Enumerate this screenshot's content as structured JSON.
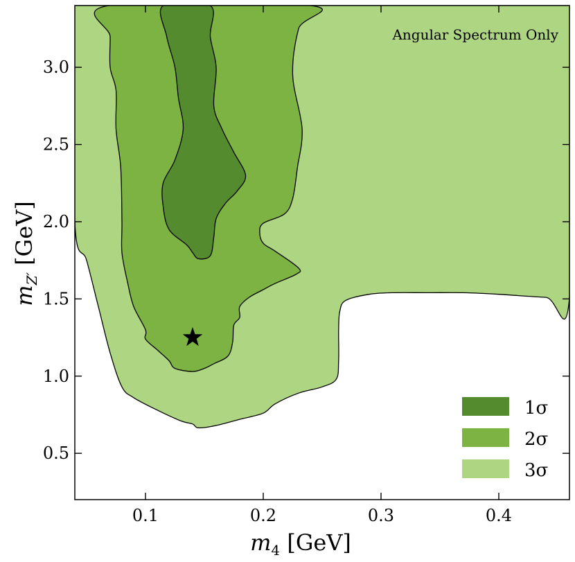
{
  "chart_data": {
    "type": "contour",
    "title": "",
    "annotation": "Angular Spectrum Only",
    "xlabel": {
      "var": "m",
      "sub": "4",
      "unit": "[GeV]"
    },
    "ylabel": {
      "var": "m",
      "sub": "Z′",
      "unit": "[GeV]"
    },
    "xlim": [
      0.04,
      0.46
    ],
    "ylim": [
      0.2,
      3.4
    ],
    "xticks": [
      0.1,
      0.2,
      0.3,
      0.4
    ],
    "xtick_labels": [
      "0.1",
      "0.2",
      "0.3",
      "0.4"
    ],
    "yticks": [
      0.5,
      1.0,
      1.5,
      2.0,
      2.5,
      3.0
    ],
    "ytick_labels": [
      "0.5",
      "1.0",
      "1.5",
      "2.0",
      "2.5",
      "3.0"
    ],
    "best_fit": {
      "x": 0.14,
      "y": 1.25,
      "marker": "star"
    },
    "legend_position": "lower-right",
    "regions": [
      {
        "label": "3σ",
        "color": "#aed581",
        "boundary": [
          [
            0.04,
            3.4
          ],
          [
            0.46,
            3.4
          ],
          [
            0.46,
            1.51
          ],
          [
            0.44,
            1.51
          ],
          [
            0.4,
            1.53
          ],
          [
            0.37,
            1.54
          ],
          [
            0.34,
            1.54
          ],
          [
            0.31,
            1.54
          ],
          [
            0.29,
            1.53
          ],
          [
            0.27,
            1.49
          ],
          [
            0.265,
            1.42
          ],
          [
            0.264,
            1.3
          ],
          [
            0.264,
            1.1
          ],
          [
            0.262,
            0.98
          ],
          [
            0.25,
            0.93
          ],
          [
            0.23,
            0.89
          ],
          [
            0.21,
            0.82
          ],
          [
            0.2,
            0.76
          ],
          [
            0.18,
            0.72
          ],
          [
            0.16,
            0.68
          ],
          [
            0.145,
            0.665
          ],
          [
            0.14,
            0.69
          ],
          [
            0.13,
            0.71
          ],
          [
            0.11,
            0.78
          ],
          [
            0.09,
            0.86
          ],
          [
            0.08,
            0.93
          ],
          [
            0.07,
            1.15
          ],
          [
            0.06,
            1.45
          ],
          [
            0.05,
            1.75
          ],
          [
            0.04,
            2.0
          ]
        ]
      },
      {
        "label": "2σ",
        "color": "#7cb342",
        "boundary": [
          [
            0.069,
            3.4
          ],
          [
            0.24,
            3.4
          ],
          [
            0.23,
            3.25
          ],
          [
            0.225,
            2.95
          ],
          [
            0.233,
            2.6
          ],
          [
            0.229,
            2.35
          ],
          [
            0.225,
            2.15
          ],
          [
            0.218,
            2.05
          ],
          [
            0.2,
            1.99
          ],
          [
            0.197,
            1.93
          ],
          [
            0.2,
            1.86
          ],
          [
            0.21,
            1.81
          ],
          [
            0.23,
            1.7
          ],
          [
            0.228,
            1.66
          ],
          [
            0.21,
            1.6
          ],
          [
            0.2,
            1.56
          ],
          [
            0.188,
            1.51
          ],
          [
            0.18,
            1.45
          ],
          [
            0.18,
            1.38
          ],
          [
            0.175,
            1.33
          ],
          [
            0.174,
            1.22
          ],
          [
            0.17,
            1.13
          ],
          [
            0.158,
            1.08
          ],
          [
            0.15,
            1.05
          ],
          [
            0.14,
            1.03
          ],
          [
            0.125,
            1.05
          ],
          [
            0.12,
            1.1
          ],
          [
            0.11,
            1.17
          ],
          [
            0.1,
            1.24
          ],
          [
            0.1,
            1.3
          ],
          [
            0.09,
            1.45
          ],
          [
            0.085,
            1.6
          ],
          [
            0.08,
            1.8
          ],
          [
            0.08,
            2.0
          ],
          [
            0.079,
            2.35
          ],
          [
            0.075,
            2.6
          ],
          [
            0.075,
            2.85
          ],
          [
            0.07,
            3.0
          ],
          [
            0.07,
            3.2
          ]
        ]
      },
      {
        "label": "1σ",
        "color": "#558b2f",
        "boundary": [
          [
            0.115,
            3.4
          ],
          [
            0.155,
            3.4
          ],
          [
            0.155,
            3.2
          ],
          [
            0.16,
            3.0
          ],
          [
            0.158,
            2.75
          ],
          [
            0.165,
            2.6
          ],
          [
            0.175,
            2.45
          ],
          [
            0.185,
            2.3
          ],
          [
            0.178,
            2.2
          ],
          [
            0.168,
            2.12
          ],
          [
            0.16,
            2.02
          ],
          [
            0.158,
            1.9
          ],
          [
            0.155,
            1.78
          ],
          [
            0.145,
            1.76
          ],
          [
            0.14,
            1.8
          ],
          [
            0.135,
            1.85
          ],
          [
            0.12,
            1.95
          ],
          [
            0.115,
            2.1
          ],
          [
            0.115,
            2.25
          ],
          [
            0.125,
            2.4
          ],
          [
            0.132,
            2.6
          ],
          [
            0.128,
            2.8
          ],
          [
            0.125,
            3.0
          ],
          [
            0.118,
            3.2
          ]
        ]
      }
    ]
  }
}
